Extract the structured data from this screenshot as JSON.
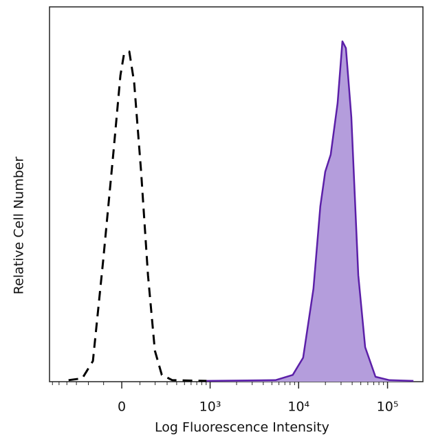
{
  "chart_data": {
    "type": "area",
    "xlabel": "Log Fluorescence Intensity",
    "ylabel": "Relative Cell Number",
    "xscale": "biexponential",
    "xlim": [
      -650,
      250000
    ],
    "ylim": [
      0,
      100
    ],
    "xticks": [
      0,
      {
        "value": 1000,
        "label": "10³"
      },
      {
        "value": 10000,
        "label": "10⁴"
      },
      {
        "value": 100000,
        "label": "10⁵"
      }
    ],
    "series": [
      {
        "color": "#000000",
        "dashed": true,
        "filled": false,
        "x": [
          -381,
          -248,
          -168,
          -103,
          -44,
          -7,
          11,
          40,
          67,
          107,
          150,
          198,
          253,
          351,
          910
        ],
        "values": [
          0.4,
          0.9,
          5.5,
          32.1,
          61.5,
          81.7,
          87.2,
          88.1,
          79.8,
          56.0,
          28.4,
          8.3,
          1.8,
          0.4,
          0.2
        ]
      },
      {
        "color": "#5b1fa8",
        "fill": "#b49ddc",
        "dashed": false,
        "filled": true,
        "x": [
          910,
          5494,
          8590,
          11234,
          14678,
          17548,
          19885,
          22940,
          27409,
          31078,
          33989,
          39176,
          46863,
          56047,
          73185,
          104755,
          195365
        ],
        "values": [
          0.2,
          0.4,
          1.8,
          6.4,
          24.8,
          46.8,
          56.0,
          60.6,
          74.3,
          90.8,
          89.0,
          70.6,
          28.4,
          9.2,
          1.3,
          0.4,
          0.2
        ]
      }
    ]
  }
}
